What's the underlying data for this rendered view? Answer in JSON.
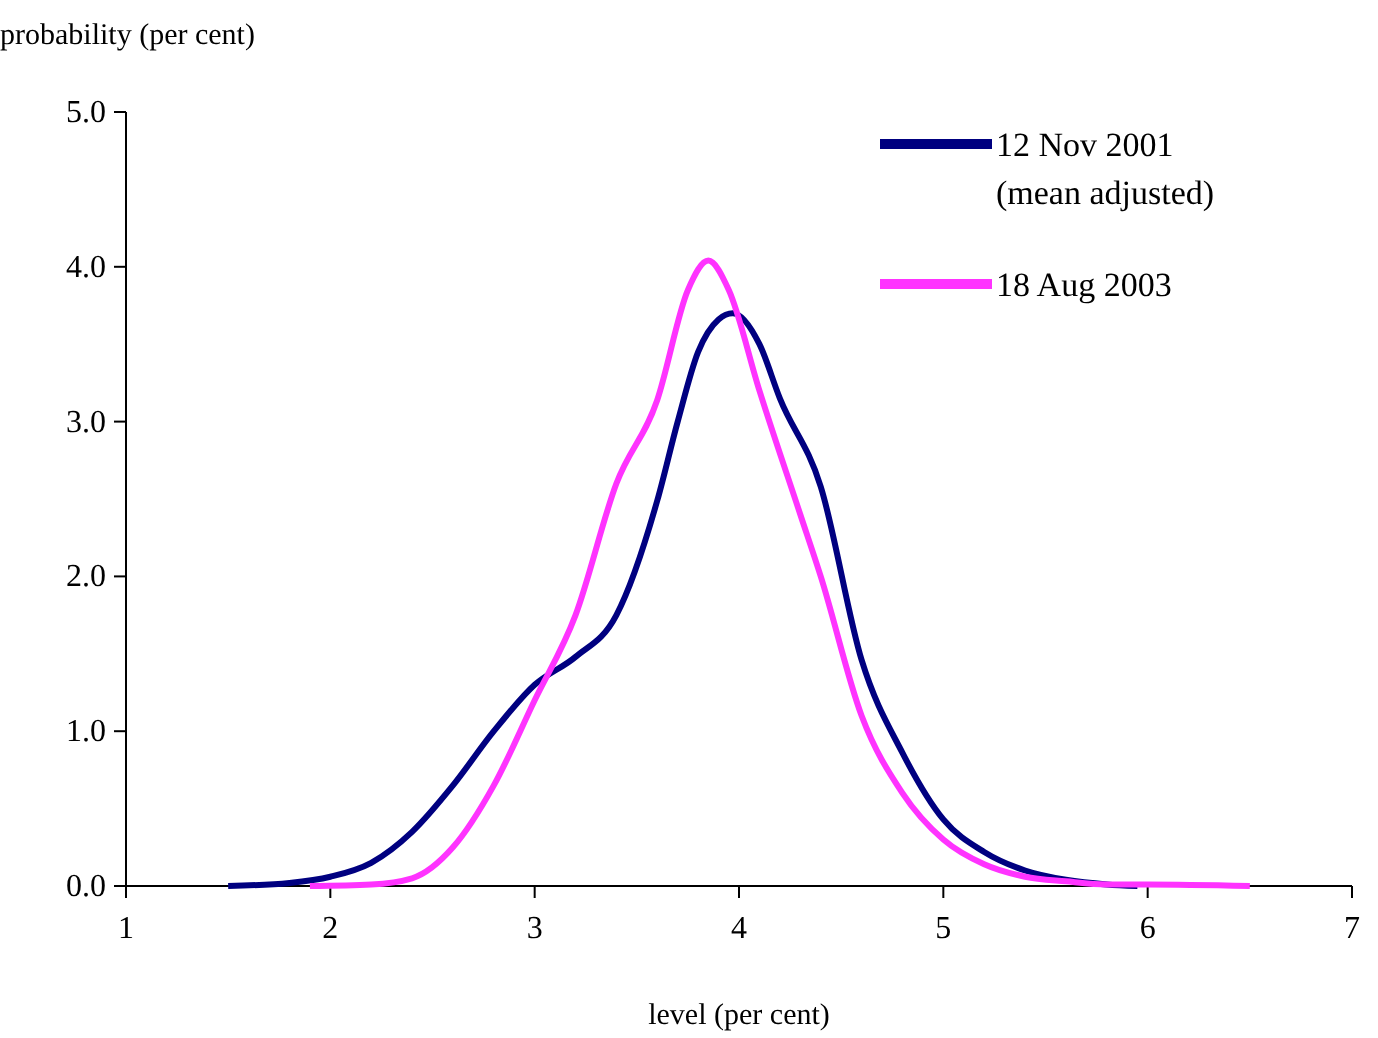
{
  "chart_data": {
    "type": "line",
    "ylabel": "probability (per cent)",
    "xlabel": "level (per cent)",
    "xlim": [
      1,
      7
    ],
    "xticks": [
      1,
      2,
      3,
      4,
      5,
      6,
      7
    ],
    "ylim": [
      0,
      5
    ],
    "yticks": [
      {
        "value": 0,
        "label": "0.0"
      },
      {
        "value": 1,
        "label": "1.0"
      },
      {
        "value": 2,
        "label": "2.0"
      },
      {
        "value": 3,
        "label": "3.0"
      },
      {
        "value": 4,
        "label": "4.0"
      },
      {
        "value": 5,
        "label": "5.0"
      }
    ],
    "legend": "top right",
    "grid": false,
    "marker": "none",
    "line_style": "solid",
    "series": [
      {
        "name": "12 Nov 2001\n(mean adjusted)",
        "color": "#000080",
        "x": [
          1.5,
          1.8,
          2.0,
          2.2,
          2.4,
          2.6,
          2.8,
          3.0,
          3.2,
          3.4,
          3.6,
          3.7,
          3.8,
          3.9,
          3.97,
          4.1,
          4.2,
          4.4,
          4.6,
          4.8,
          5.0,
          5.2,
          5.4,
          5.6,
          5.8,
          5.95
        ],
        "values": [
          0,
          0.02,
          0.06,
          0.15,
          0.35,
          0.65,
          1.0,
          1.3,
          1.48,
          1.75,
          2.49,
          3.0,
          3.45,
          3.66,
          3.7,
          3.5,
          3.15,
          2.58,
          1.46,
          0.86,
          0.43,
          0.22,
          0.1,
          0.04,
          0.01,
          0
        ]
      },
      {
        "name": "18 Aug 2003",
        "color": "#ff33ff",
        "x": [
          1.9,
          2.2,
          2.4,
          2.6,
          2.8,
          3.0,
          3.2,
          3.4,
          3.6,
          3.75,
          3.85,
          3.95,
          4.1,
          4.3,
          4.4,
          4.6,
          4.8,
          5.0,
          5.2,
          5.4,
          5.6,
          5.8,
          6.0,
          6.5
        ],
        "values": [
          0,
          0.01,
          0.05,
          0.25,
          0.65,
          1.2,
          1.75,
          2.6,
          3.14,
          3.85,
          4.04,
          3.85,
          3.2,
          2.4,
          2.0,
          1.1,
          0.6,
          0.3,
          0.14,
          0.06,
          0.03,
          0.01,
          0.01,
          0
        ]
      }
    ]
  }
}
